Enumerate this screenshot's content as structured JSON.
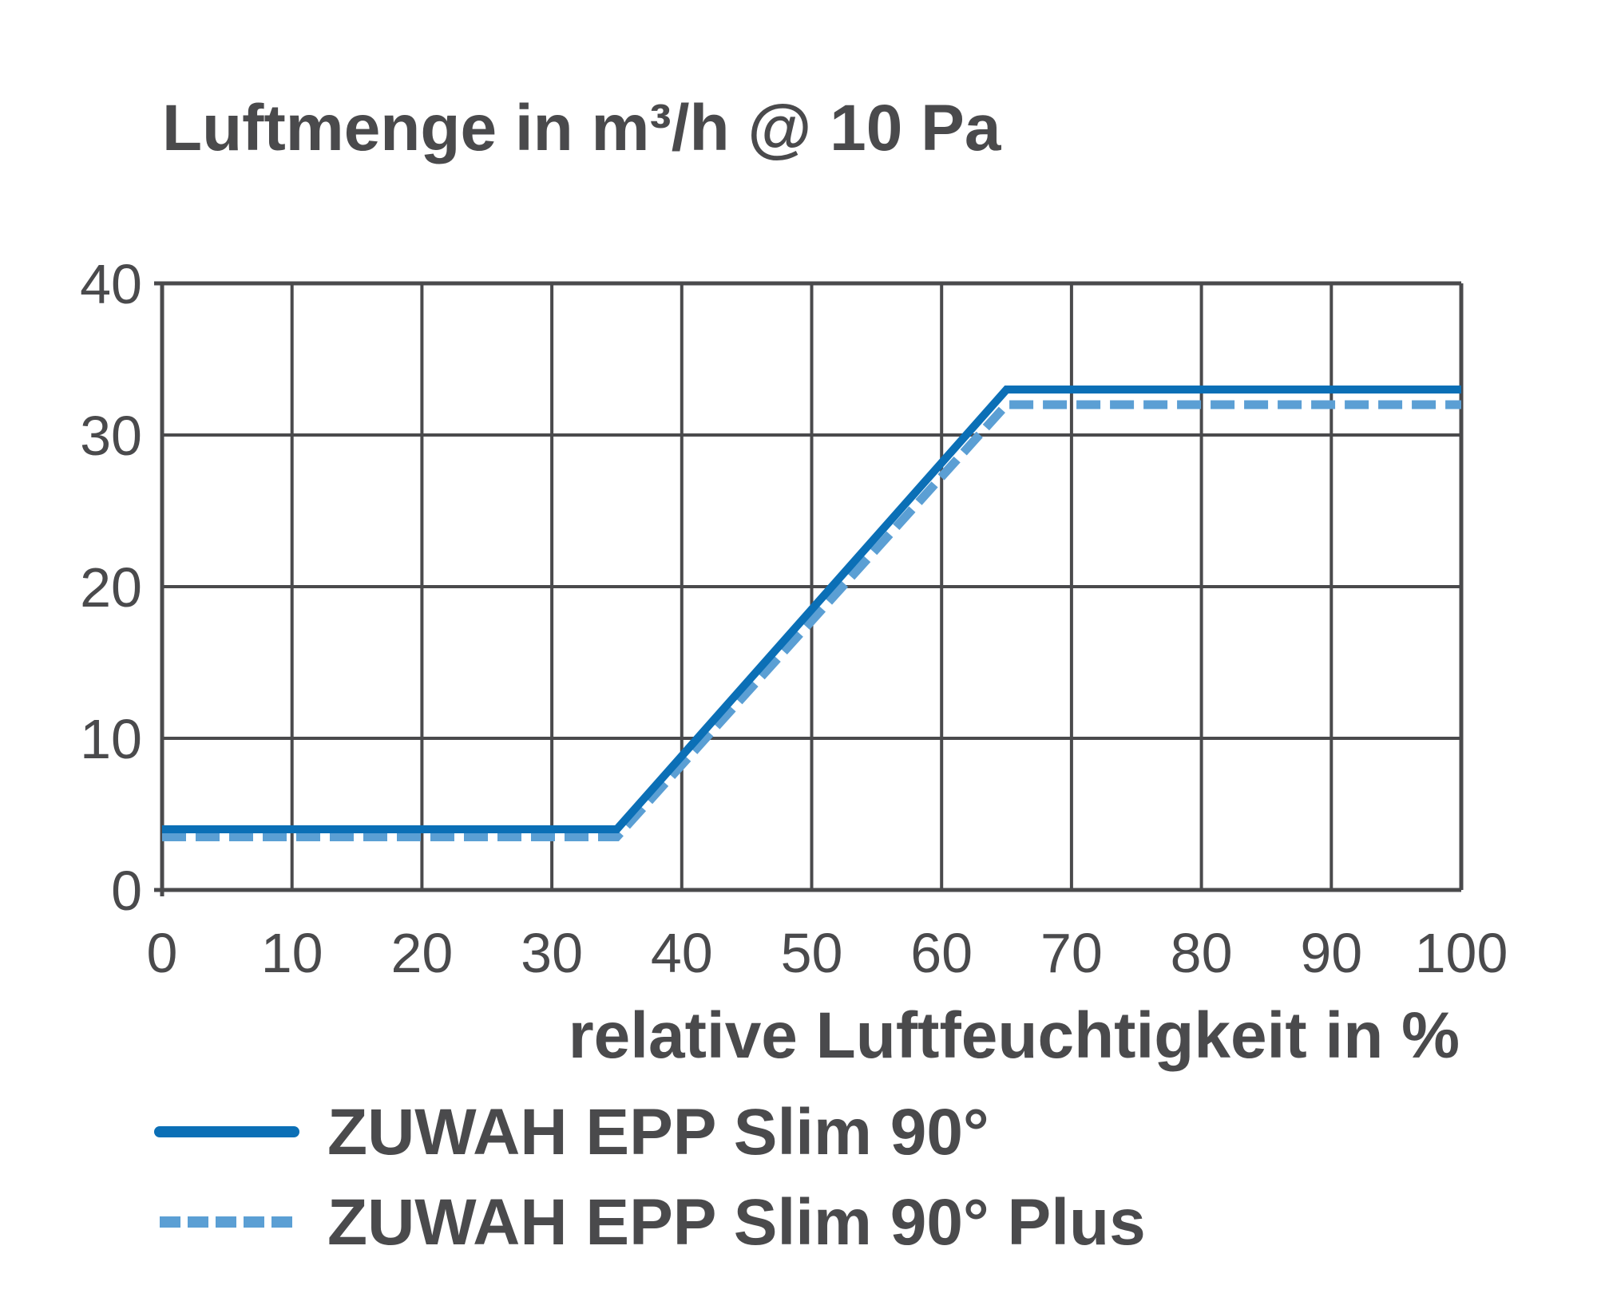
{
  "chart_data": {
    "type": "line",
    "title": "Luftmenge in m³/h @ 10 Pa",
    "xlabel": "relative Luftfeuchtigkeit in %",
    "ylabel": "",
    "xlim": [
      0,
      100
    ],
    "ylim": [
      0,
      40
    ],
    "x_ticks": [
      "0",
      "10",
      "20",
      "30",
      "40",
      "50",
      "60",
      "70",
      "80",
      "90",
      "100"
    ],
    "y_ticks": [
      "0",
      "10",
      "20",
      "30",
      "40"
    ],
    "grid": true,
    "legend_position": "bottom-left",
    "series": [
      {
        "name": "ZUWAH EPP Slim 90°",
        "style": "solid",
        "color": "#0b6fb6",
        "x": [
          0,
          35,
          65,
          100
        ],
        "y": [
          4,
          4,
          33,
          33
        ]
      },
      {
        "name": "ZUWAH EPP Slim 90° Plus",
        "style": "dashed",
        "color": "#5b9fd4",
        "x": [
          0,
          35,
          65,
          100
        ],
        "y": [
          3.5,
          3.5,
          32,
          32
        ]
      }
    ]
  },
  "colors": {
    "grid": "#4a4a4c",
    "text": "#4a4a4c"
  }
}
